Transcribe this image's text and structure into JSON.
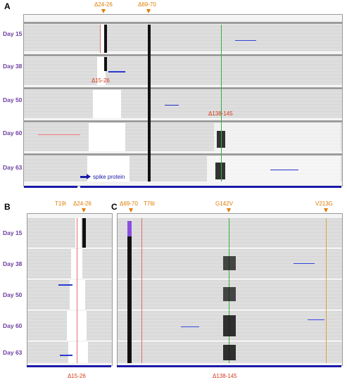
{
  "panels": {
    "a": {
      "letter": "A",
      "days": [
        "Day 15",
        "Day 38",
        "Day 50",
        "Day 60",
        "Day 63"
      ]
    },
    "b": {
      "letter": "B",
      "days": [
        "Day 15",
        "Day 38",
        "Day 50",
        "Day 60",
        "Day 63"
      ]
    },
    "c": {
      "letter": "C",
      "days": [
        "Day 15",
        "Day 38",
        "Day 50",
        "Day 60",
        "Day 63"
      ]
    }
  },
  "annotations": {
    "a_d24_26": "Δ24-26",
    "a_d69_70": "Δ69-70",
    "a_d15_26": "Δ15-26",
    "a_d138_145": "Δ138-145",
    "a_spike": "spike protein",
    "b_t19i": "T19I",
    "b_d24_26": "Δ24-26",
    "b_d15_26": "Δ15-26",
    "c_d69_70": "Δ69-70",
    "c_t76i": "T76I",
    "c_g142v": "G142V",
    "c_v213g": "V213G",
    "c_d138_145": "Δ138-145"
  },
  "colors": {
    "orange": "#e07b00",
    "red": "#d33a1a",
    "purple": "#6b3fa0",
    "blue": "#1a1aa8"
  }
}
